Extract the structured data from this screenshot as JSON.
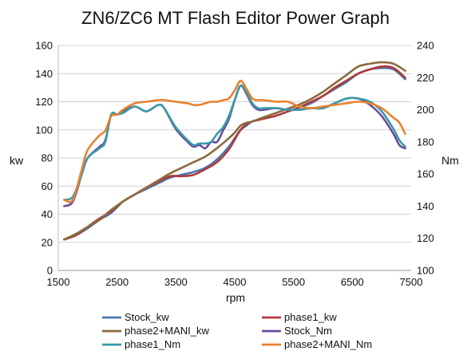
{
  "chart_data": {
    "type": "line",
    "title": "ZN6/ZC6 MT Flash Editor Power Graph",
    "xlabel": "rpm",
    "ylabel": "kw",
    "y2label": "Nm",
    "xlim": [
      1500,
      7500
    ],
    "ylim": [
      0,
      160
    ],
    "y2lim": [
      100,
      240
    ],
    "xticks": [
      1500,
      2500,
      3500,
      4500,
      5500,
      6500,
      7500
    ],
    "yticks": [
      0,
      20,
      40,
      60,
      80,
      100,
      120,
      140,
      160
    ],
    "y2ticks": [
      100,
      120,
      140,
      160,
      180,
      200,
      220,
      240
    ],
    "grid": "horizontal",
    "legend_position": "bottom",
    "series": [
      {
        "name": "Stock_kw",
        "axis": "left",
        "color": "#4a74b0",
        "x": [
          1600,
          1800,
          2000,
          2200,
          2400,
          2600,
          2800,
          3000,
          3200,
          3400,
          3600,
          3800,
          4000,
          4200,
          4400,
          4500,
          4600,
          4700,
          4800,
          5000,
          5200,
          5400,
          5600,
          5800,
          6000,
          6200,
          6400,
          6600,
          6800,
          7000,
          7200,
          7400
        ],
        "y": [
          22,
          25,
          30,
          36,
          41,
          49,
          54,
          58,
          62,
          66,
          68,
          70,
          73,
          79,
          88,
          94,
          100,
          103,
          106,
          108,
          110,
          113,
          116,
          119,
          124,
          129,
          134,
          140,
          143,
          144,
          143,
          136
        ]
      },
      {
        "name": "phase1_kw",
        "axis": "left",
        "color": "#b03a3a",
        "x": [
          1600,
          1800,
          2000,
          2200,
          2400,
          2600,
          2800,
          3000,
          3200,
          3400,
          3600,
          3800,
          4000,
          4200,
          4400,
          4500,
          4600,
          4700,
          4800,
          5000,
          5200,
          5400,
          5600,
          5800,
          6000,
          6200,
          6400,
          6600,
          6800,
          7000,
          7200,
          7400
        ],
        "y": [
          22,
          25,
          31,
          37,
          42,
          49,
          54,
          59,
          63,
          67,
          67,
          68,
          72,
          77,
          86,
          93,
          100,
          104,
          106,
          108,
          110,
          113,
          116,
          120,
          124,
          130,
          135,
          140,
          143,
          145,
          144,
          137
        ]
      },
      {
        "name": "phase2+MANI_kw",
        "axis": "left",
        "color": "#8b6a3c",
        "x": [
          1600,
          1800,
          2000,
          2200,
          2400,
          2600,
          2800,
          3000,
          3200,
          3400,
          3600,
          3800,
          4000,
          4200,
          4400,
          4500,
          4600,
          4700,
          4800,
          5000,
          5200,
          5400,
          5600,
          5800,
          6000,
          6200,
          6400,
          6600,
          6800,
          7000,
          7200,
          7400
        ],
        "y": [
          22,
          26,
          31,
          36,
          43,
          49,
          54,
          59,
          64,
          69,
          73,
          77,
          81,
          87,
          94,
          98,
          103,
          105,
          106,
          109,
          112,
          115,
          118,
          122,
          127,
          133,
          139,
          145,
          147,
          148,
          147,
          142
        ]
      },
      {
        "name": "Stock_Nm",
        "axis": "right",
        "color": "#6a4c9c",
        "x": [
          1600,
          1750,
          1900,
          2000,
          2200,
          2300,
          2400,
          2500,
          2600,
          2800,
          3000,
          3200,
          3300,
          3500,
          3700,
          3800,
          3900,
          4000,
          4100,
          4200,
          4300,
          4400,
          4500,
          4600,
          4700,
          4800,
          4900,
          5000,
          5200,
          5400,
          5600,
          5800,
          6000,
          6200,
          6400,
          6600,
          6800,
          7000,
          7200,
          7300,
          7400
        ],
        "y": [
          140,
          143,
          160,
          170,
          177,
          181,
          197,
          197,
          199,
          202,
          199,
          203,
          201,
          188,
          180,
          177,
          178,
          176,
          180,
          180,
          187,
          194,
          206,
          215,
          210,
          203,
          200,
          200,
          201,
          200,
          200,
          201,
          201,
          204,
          207,
          207,
          203,
          196,
          185,
          178,
          176
        ]
      },
      {
        "name": "phase1_Nm",
        "axis": "right",
        "color": "#3a9aa8",
        "x": [
          1600,
          1750,
          1900,
          2000,
          2200,
          2300,
          2400,
          2500,
          2600,
          2800,
          3000,
          3200,
          3300,
          3500,
          3700,
          3800,
          3900,
          4000,
          4100,
          4200,
          4300,
          4400,
          4500,
          4600,
          4700,
          4800,
          4900,
          5000,
          5200,
          5400,
          5600,
          5800,
          6000,
          6200,
          6400,
          6600,
          6800,
          7000,
          7200,
          7300,
          7400
        ],
        "y": [
          144,
          146,
          160,
          170,
          176,
          180,
          197,
          197,
          198,
          202,
          199,
          203,
          201,
          189,
          181,
          178,
          179,
          179,
          180,
          185,
          189,
          196,
          206,
          215,
          211,
          204,
          201,
          201,
          201,
          200,
          200,
          201,
          201,
          204,
          207,
          207,
          205,
          199,
          188,
          181,
          177
        ]
      },
      {
        "name": "phase2+MANI_Nm",
        "axis": "right",
        "color": "#e8822e",
        "x": [
          1600,
          1750,
          1900,
          2000,
          2200,
          2300,
          2400,
          2500,
          2600,
          2800,
          3000,
          3200,
          3300,
          3500,
          3700,
          3800,
          3900,
          4000,
          4100,
          4200,
          4300,
          4400,
          4500,
          4600,
          4700,
          4800,
          4900,
          5000,
          5200,
          5400,
          5600,
          5800,
          6000,
          6200,
          6400,
          6600,
          6800,
          7000,
          7200,
          7300,
          7400
        ],
        "y": [
          144,
          144,
          163,
          175,
          184,
          187,
          196,
          197,
          200,
          204,
          205,
          206,
          206,
          205,
          204,
          203,
          203,
          204,
          205,
          205,
          206,
          207,
          212,
          218,
          213,
          207,
          206,
          206,
          205,
          205,
          202,
          201,
          202,
          203,
          204,
          205,
          204,
          201,
          195,
          192,
          185
        ]
      }
    ]
  }
}
